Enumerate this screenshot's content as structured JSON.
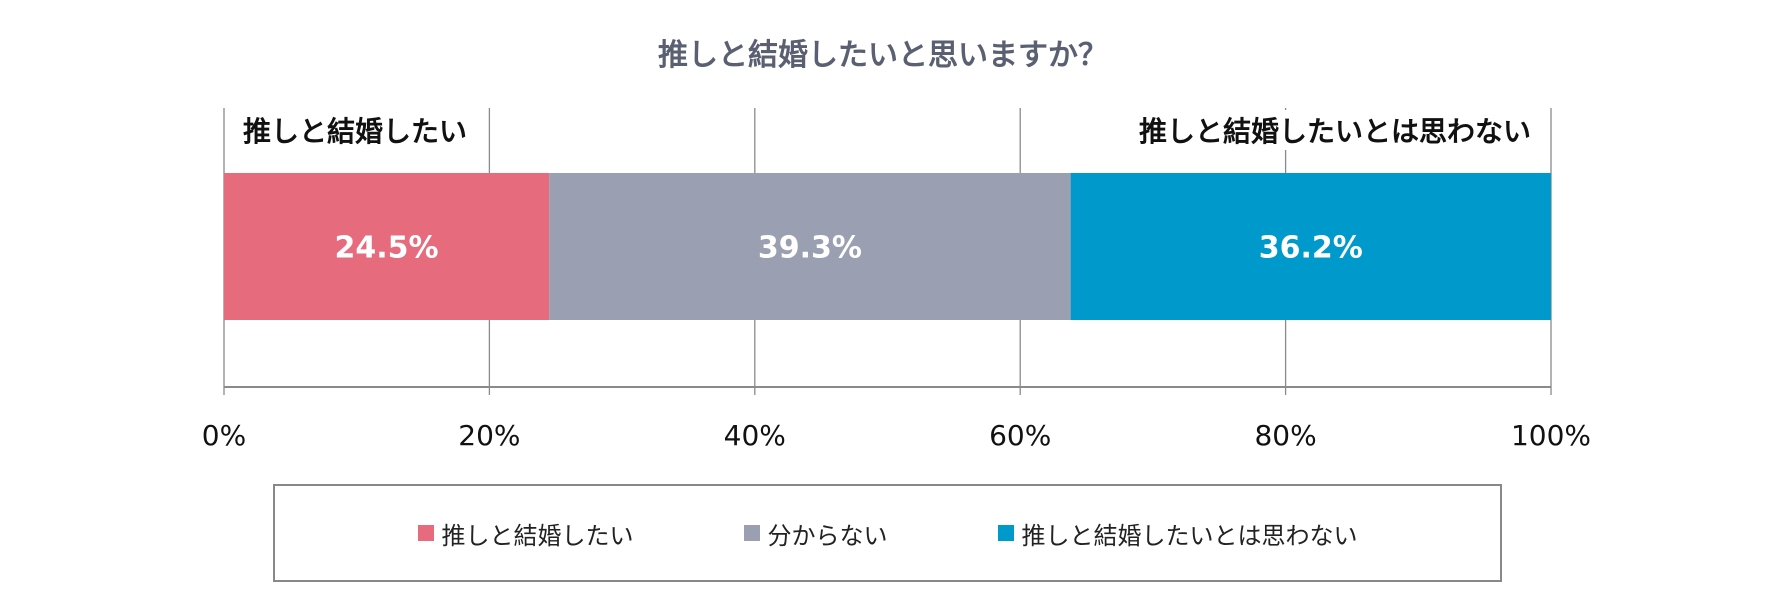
{
  "chart_data": {
    "type": "bar",
    "orientation": "horizontal-stacked",
    "title": "推しと結婚したいと思いますか？",
    "categories": [
      ""
    ],
    "series": [
      {
        "name": "推しと結婚したい",
        "values": [
          24.5
        ],
        "label": "24.5%",
        "color": "#e66b7d"
      },
      {
        "name": "分からない",
        "values": [
          39.3
        ],
        "label": "39.3%",
        "color": "#9aa0b1"
      },
      {
        "name": "推しと結婚したいとは思わない",
        "values": [
          36.2
        ],
        "label": "36.2%",
        "color": "#0099cc"
      }
    ],
    "xlim": [
      0,
      100
    ],
    "xticks": [
      "0%",
      "20%",
      "40%",
      "60%",
      "80%",
      "100%"
    ],
    "grid": true,
    "legend": "bottom",
    "annotations": {
      "left": "推しと結婚したい",
      "right": "推しと結婚したいとは思わない"
    }
  }
}
